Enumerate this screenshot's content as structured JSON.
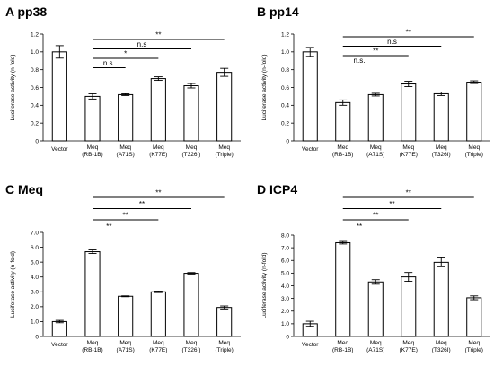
{
  "chart_data": [
    {
      "type": "bar",
      "title": "A pp38",
      "ylabel": "Luciferase activity (n-fold)",
      "ylim": [
        0,
        1.2
      ],
      "yticks": [
        "0",
        "0.2",
        "0.4",
        "0.6",
        "0.8",
        "1.0",
        "1.2"
      ],
      "categories": [
        [
          "Vector"
        ],
        [
          "Meq",
          "(RB-1B)"
        ],
        [
          "Meq",
          "(A71S)"
        ],
        [
          "Meq",
          "(K77E)"
        ],
        [
          "Meq",
          "(T326I)"
        ],
        [
          "Meq",
          "(Triple)"
        ]
      ],
      "values": [
        1.0,
        0.5,
        0.52,
        0.7,
        0.62,
        0.77
      ],
      "errors": [
        0.07,
        0.03,
        0.01,
        0.02,
        0.025,
        0.045
      ],
      "comparisons": [
        {
          "from": 1,
          "to": 2,
          "label": "n.s."
        },
        {
          "from": 1,
          "to": 3,
          "label": "*"
        },
        {
          "from": 1,
          "to": 4,
          "label": "n.s"
        },
        {
          "from": 1,
          "to": 5,
          "label": "**"
        }
      ]
    },
    {
      "type": "bar",
      "title": "B pp14",
      "ylabel": "Luciferase activity (n-fold)",
      "ylim": [
        0,
        1.2
      ],
      "yticks": [
        "0",
        "0.2",
        "0.4",
        "0.6",
        "0.8",
        "1.0",
        "1.2"
      ],
      "categories": [
        [
          "Vector"
        ],
        [
          "Meq",
          "(RB-1B)"
        ],
        [
          "Meq",
          "(A71S)"
        ],
        [
          "Meq",
          "(K77E)"
        ],
        [
          "Meq",
          "(T326I)"
        ],
        [
          "Meq",
          "(Triple)"
        ]
      ],
      "values": [
        1.0,
        0.43,
        0.52,
        0.64,
        0.53,
        0.66
      ],
      "errors": [
        0.05,
        0.03,
        0.015,
        0.03,
        0.02,
        0.015
      ],
      "comparisons": [
        {
          "from": 1,
          "to": 2,
          "label": "n.s."
        },
        {
          "from": 1,
          "to": 3,
          "label": "**"
        },
        {
          "from": 1,
          "to": 4,
          "label": "n.s"
        },
        {
          "from": 1,
          "to": 5,
          "label": "**"
        }
      ]
    },
    {
      "type": "bar",
      "title": "C Meq",
      "ylabel": "Luciferase activity (n-fold)",
      "ylim": [
        0,
        7.0
      ],
      "yticks": [
        "0",
        "1.0",
        "2.0",
        "3.0",
        "4.0",
        "5.0",
        "6.0",
        "7.0"
      ],
      "categories": [
        [
          "Vector"
        ],
        [
          "Meq",
          "(RB-1B)"
        ],
        [
          "Meq",
          "(A71S)"
        ],
        [
          "Meq",
          "(K77E)"
        ],
        [
          "Meq",
          "(T326I)"
        ],
        [
          "Meq",
          "(Triple)"
        ]
      ],
      "values": [
        1.0,
        5.7,
        2.7,
        3.0,
        4.25,
        1.95
      ],
      "errors": [
        0.08,
        0.12,
        0.03,
        0.05,
        0.05,
        0.1
      ],
      "comparisons": [
        {
          "from": 1,
          "to": 2,
          "label": "**"
        },
        {
          "from": 1,
          "to": 3,
          "label": "**"
        },
        {
          "from": 1,
          "to": 4,
          "label": "**"
        },
        {
          "from": 1,
          "to": 5,
          "label": "**"
        }
      ]
    },
    {
      "type": "bar",
      "title": "D ICP4",
      "ylabel": "Luciferase activity (n-fold)",
      "ylim": [
        0,
        8.0
      ],
      "yticks": [
        "0",
        "1.0",
        "2.0",
        "3.0",
        "4.0",
        "5.0",
        "6.0",
        "7.0",
        "8.0"
      ],
      "categories": [
        [
          "Vector"
        ],
        [
          "Meq",
          "(RB-1B)"
        ],
        [
          "Meq",
          "(A71S)"
        ],
        [
          "Meq",
          "(K77E)"
        ],
        [
          "Meq",
          "(T326I)"
        ],
        [
          "Meq",
          "(Triple)"
        ]
      ],
      "values": [
        1.0,
        7.4,
        4.3,
        4.7,
        5.85,
        3.05
      ],
      "errors": [
        0.2,
        0.1,
        0.18,
        0.35,
        0.35,
        0.15
      ],
      "comparisons": [
        {
          "from": 1,
          "to": 2,
          "label": "**"
        },
        {
          "from": 1,
          "to": 3,
          "label": "**"
        },
        {
          "from": 1,
          "to": 4,
          "label": "**"
        },
        {
          "from": 1,
          "to": 5,
          "label": "**"
        }
      ]
    }
  ]
}
